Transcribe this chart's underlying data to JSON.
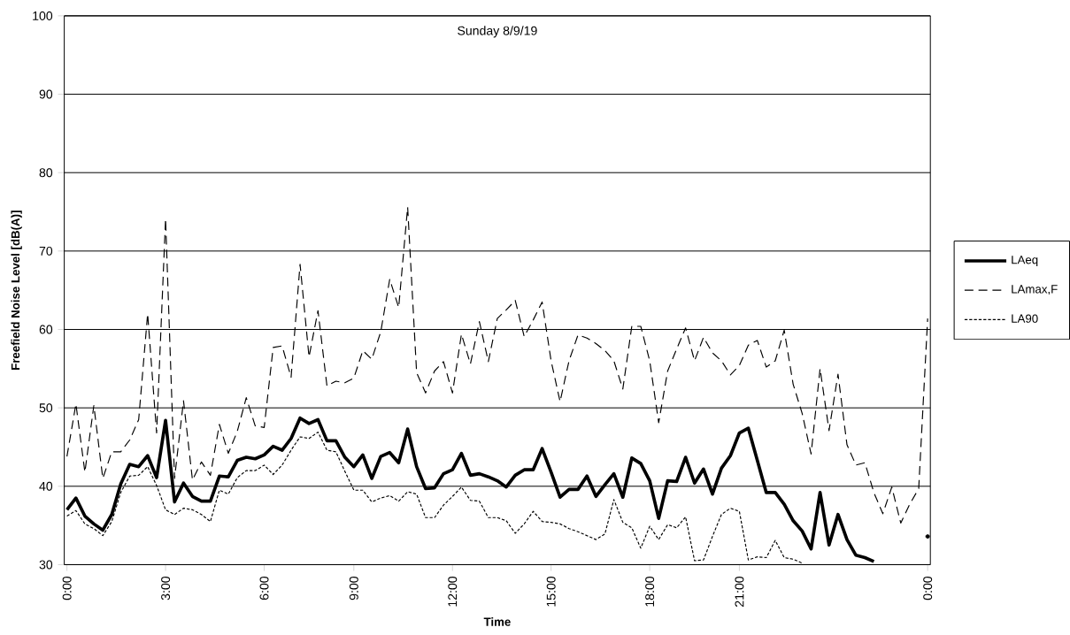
{
  "chart_data": {
    "type": "line",
    "title": "Sunday 8/9/19",
    "xlabel": "Time",
    "ylabel": "Freefield Noise Level [dB(A)]",
    "categories": [
      "0:00",
      null,
      null,
      null,
      null,
      null,
      null,
      null,
      null,
      null,
      null,
      "3:00",
      null,
      null,
      null,
      null,
      null,
      null,
      null,
      null,
      null,
      null,
      "6:00",
      null,
      null,
      null,
      null,
      null,
      null,
      null,
      null,
      null,
      "9:00",
      null,
      null,
      null,
      null,
      null,
      null,
      null,
      null,
      null,
      null,
      "12:00",
      null,
      null,
      null,
      null,
      null,
      null,
      null,
      null,
      null,
      null,
      "15:00",
      null,
      null,
      null,
      null,
      null,
      null,
      null,
      null,
      null,
      null,
      "18:00",
      null,
      null,
      null,
      null,
      null,
      null,
      null,
      null,
      null,
      "21:00",
      null,
      null,
      null,
      null,
      null,
      null,
      null,
      null,
      null,
      null,
      null,
      null,
      null,
      null,
      null,
      null,
      null,
      null,
      null,
      null,
      "0:00"
    ],
    "series": [
      {
        "name": "LAeq",
        "color": "#000000",
        "line_style": "solid",
        "values": [
          37.0,
          38.5,
          36.2,
          35.2,
          34.4,
          36.4,
          40.3,
          42.8,
          42.5,
          43.9,
          41.1,
          48.4,
          38.0,
          40.4,
          38.7,
          38.1,
          38.1,
          41.3,
          41.2,
          43.3,
          43.7,
          43.5,
          44.0,
          45.1,
          44.6,
          46.1,
          48.7,
          48.0,
          48.5,
          45.8,
          45.8,
          43.7,
          42.5,
          44.0,
          41.0,
          43.8,
          44.3,
          43.0,
          47.3,
          42.5,
          39.7,
          39.8,
          41.6,
          42.1,
          44.2,
          41.4,
          41.6,
          41.2,
          40.7,
          39.9,
          41.4,
          42.1,
          42.1,
          44.8,
          41.8,
          38.6,
          39.6,
          39.6,
          41.3,
          38.7,
          40.2,
          41.6,
          38.6,
          43.6,
          42.9,
          40.7,
          35.9,
          40.7,
          40.6,
          43.7,
          40.4,
          42.2,
          39.0,
          42.3,
          43.9,
          46.8,
          47.4,
          43.3,
          39.2,
          39.2,
          37.7,
          35.6,
          34.3,
          32.0,
          39.2,
          32.5,
          36.4,
          33.2,
          31.2,
          30.9,
          30.4,
          null,
          null,
          null,
          null,
          null,
          33.6
        ]
      },
      {
        "name": "LAmax,F",
        "color": "#000000",
        "line_style": "dashed",
        "values": [
          43.8,
          50.5,
          41.8,
          50.3,
          41.0,
          44.4,
          44.4,
          45.9,
          48.5,
          62.0,
          46.8,
          74.1,
          41.0,
          50.9,
          40.8,
          43.1,
          41.4,
          47.9,
          44.2,
          47.0,
          51.3,
          47.7,
          47.5,
          57.7,
          57.9,
          53.9,
          68.3,
          56.5,
          62.4,
          52.8,
          53.4,
          53.2,
          53.8,
          57.3,
          56.2,
          59.7,
          66.4,
          62.8,
          75.6,
          54.5,
          51.9,
          54.7,
          55.9,
          51.9,
          59.4,
          55.6,
          61.0,
          55.9,
          61.4,
          62.5,
          63.7,
          59.1,
          61.2,
          63.5,
          56.0,
          50.8,
          56.0,
          59.3,
          58.9,
          58.2,
          57.3,
          56.0,
          52.4,
          60.4,
          60.4,
          56.0,
          48.1,
          54.7,
          57.5,
          60.2,
          56.0,
          59.0,
          57.0,
          56.0,
          54.2,
          55.4,
          58.0,
          58.6,
          55.2,
          56.0,
          59.9,
          53.0,
          49.3,
          44.1,
          55.0,
          47.1,
          54.3,
          45.3,
          42.7,
          43.0,
          39.2,
          36.5,
          39.9,
          35.3,
          37.7,
          39.7,
          61.4
        ]
      },
      {
        "name": "LA90",
        "color": "#000000",
        "line_style": "dotted",
        "values": [
          36.2,
          36.9,
          35.2,
          34.6,
          33.7,
          35.5,
          39.2,
          41.3,
          41.4,
          42.5,
          40.1,
          37.0,
          36.4,
          37.2,
          37.0,
          36.4,
          35.5,
          39.5,
          39.0,
          41.1,
          42.0,
          42.0,
          42.7,
          41.5,
          42.7,
          44.6,
          46.3,
          46.1,
          46.9,
          44.6,
          44.4,
          41.9,
          39.5,
          39.5,
          38.0,
          38.5,
          38.8,
          38.1,
          39.3,
          39.0,
          36.0,
          36.0,
          37.6,
          38.7,
          39.9,
          38.2,
          38.1,
          36.0,
          36.0,
          35.6,
          34.0,
          35.2,
          36.8,
          35.5,
          35.4,
          35.2,
          34.6,
          34.2,
          33.7,
          33.2,
          33.9,
          38.3,
          35.4,
          34.7,
          32.1,
          34.9,
          33.2,
          35.1,
          34.7,
          36.1,
          30.5,
          30.6,
          33.6,
          36.4,
          37.2,
          36.8,
          30.6,
          31.0,
          30.9,
          33.1,
          30.9,
          30.7,
          30.2,
          null,
          null,
          null,
          null,
          null,
          null,
          null,
          null,
          null,
          null,
          null,
          null,
          null,
          null
        ]
      }
    ],
    "ylim": [
      30,
      100
    ],
    "yticks": [
      30,
      40,
      50,
      60,
      70,
      80,
      90,
      100
    ],
    "grid": "y",
    "legend": "right"
  }
}
